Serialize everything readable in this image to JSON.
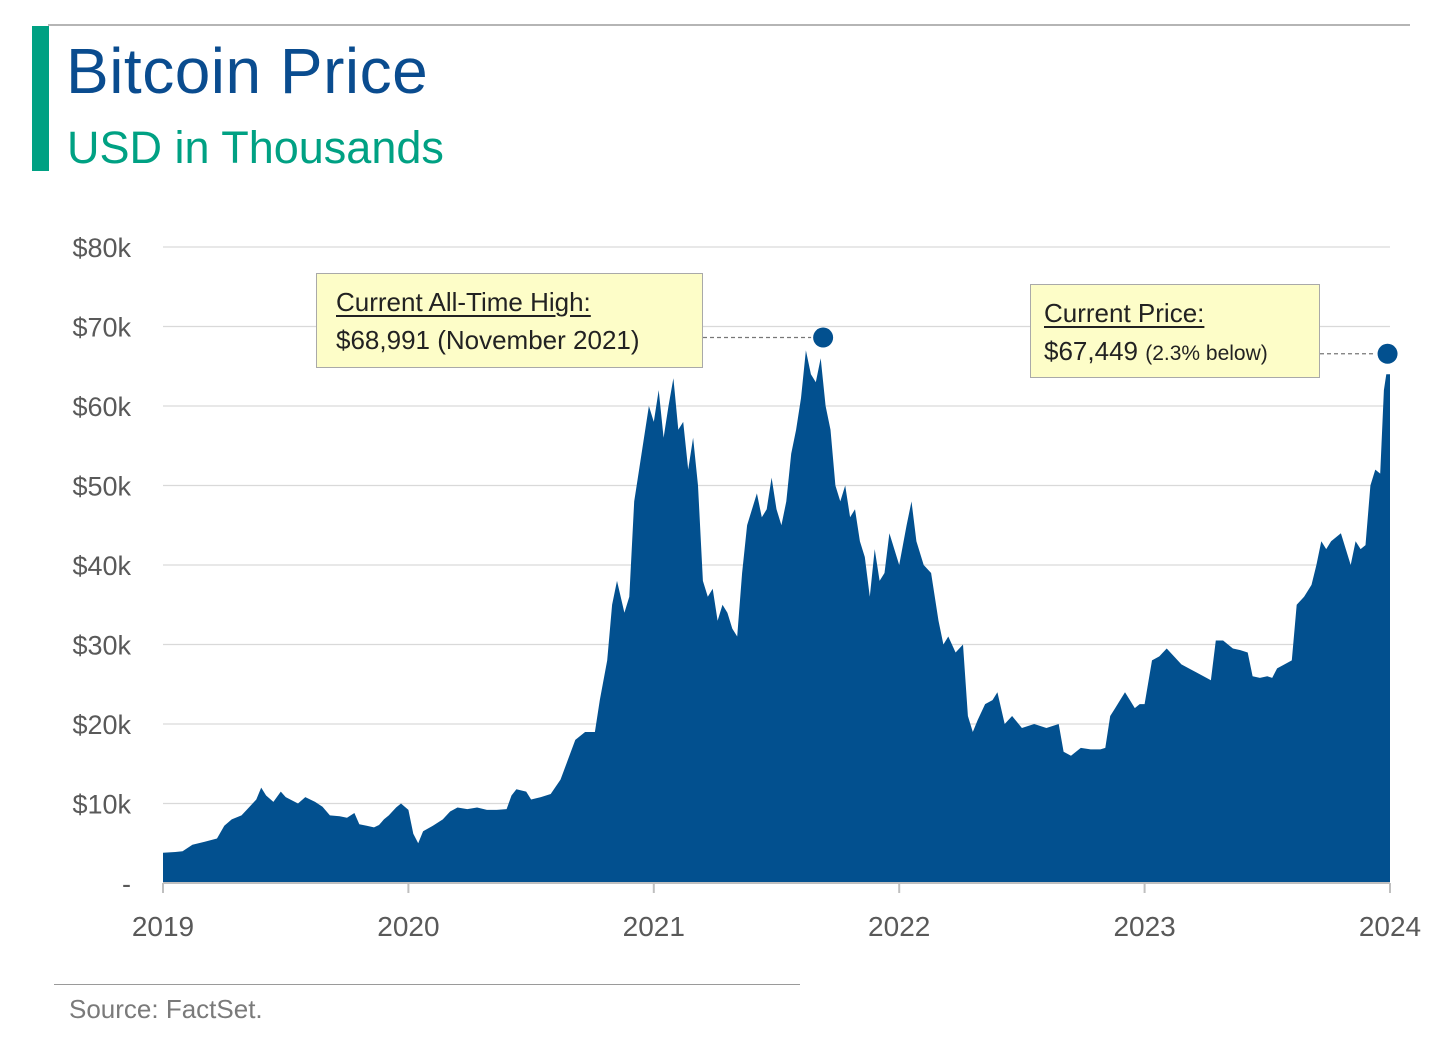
{
  "header": {
    "title": "Bitcoin Price",
    "subtitle": "USD in Thousands"
  },
  "footer": {
    "source": "Source: FactSet."
  },
  "annotations": {
    "all_time_high": {
      "label": "Current All-Time High:",
      "value": "$68,991 (November 2021)",
      "x": 2021.69,
      "y": 68.991
    },
    "current_price": {
      "label": "Current Price:",
      "value": "$67,449",
      "note": "(2.3% below)",
      "x": 2023.99,
      "y": 67.449
    }
  },
  "colors": {
    "area": "#02508f",
    "title": "#0a4c8f",
    "accent": "#00a183",
    "callout_bg": "#fdfdc8",
    "grid": "#d9d9d9"
  },
  "chart_data": {
    "type": "area",
    "title": "Bitcoin Price",
    "subtitle": "USD in Thousands",
    "x_ticks": [
      "2019",
      "2020",
      "2021",
      "2022",
      "2023",
      "2024"
    ],
    "x_tick_values": [
      2019,
      2020,
      2021,
      2022,
      2023,
      2024
    ],
    "y_ticks": [
      "-",
      "$10k",
      "$20k",
      "$30k",
      "$40k",
      "$50k",
      "$60k",
      "$70k",
      "$80k"
    ],
    "y_tick_values": [
      0,
      10,
      20,
      30,
      40,
      50,
      60,
      70,
      80
    ],
    "xlim": [
      2019,
      2024
    ],
    "ylim": [
      0,
      80
    ],
    "grid": true,
    "series": [
      {
        "points": [
          [
            2019.0,
            3.8
          ],
          [
            2019.05,
            3.9
          ],
          [
            2019.08,
            4.0
          ],
          [
            2019.12,
            4.8
          ],
          [
            2019.17,
            5.2
          ],
          [
            2019.22,
            5.6
          ],
          [
            2019.25,
            7.2
          ],
          [
            2019.28,
            8.0
          ],
          [
            2019.32,
            8.5
          ],
          [
            2019.35,
            9.5
          ],
          [
            2019.38,
            10.5
          ],
          [
            2019.4,
            12.0
          ],
          [
            2019.42,
            11.0
          ],
          [
            2019.45,
            10.2
          ],
          [
            2019.48,
            11.5
          ],
          [
            2019.5,
            10.8
          ],
          [
            2019.55,
            10.0
          ],
          [
            2019.58,
            10.8
          ],
          [
            2019.62,
            10.2
          ],
          [
            2019.65,
            9.6
          ],
          [
            2019.68,
            8.5
          ],
          [
            2019.72,
            8.4
          ],
          [
            2019.75,
            8.2
          ],
          [
            2019.78,
            8.8
          ],
          [
            2019.8,
            7.4
          ],
          [
            2019.83,
            7.2
          ],
          [
            2019.86,
            7.0
          ],
          [
            2019.88,
            7.3
          ],
          [
            2019.9,
            8.0
          ],
          [
            2019.92,
            8.5
          ],
          [
            2019.95,
            9.5
          ],
          [
            2019.97,
            10.0
          ],
          [
            2020.0,
            9.2
          ],
          [
            2020.02,
            6.2
          ],
          [
            2020.04,
            5.0
          ],
          [
            2020.06,
            6.5
          ],
          [
            2020.1,
            7.2
          ],
          [
            2020.14,
            8.0
          ],
          [
            2020.17,
            9.0
          ],
          [
            2020.2,
            9.5
          ],
          [
            2020.24,
            9.3
          ],
          [
            2020.28,
            9.5
          ],
          [
            2020.32,
            9.2
          ],
          [
            2020.36,
            9.2
          ],
          [
            2020.4,
            9.3
          ],
          [
            2020.42,
            11.0
          ],
          [
            2020.44,
            11.8
          ],
          [
            2020.48,
            11.5
          ],
          [
            2020.5,
            10.5
          ],
          [
            2020.54,
            10.8
          ],
          [
            2020.58,
            11.2
          ],
          [
            2020.62,
            13.0
          ],
          [
            2020.65,
            15.5
          ],
          [
            2020.68,
            18.0
          ],
          [
            2020.72,
            19.0
          ],
          [
            2020.76,
            19.0
          ],
          [
            2020.78,
            23.0
          ],
          [
            2020.81,
            28.0
          ],
          [
            2020.83,
            35.0
          ],
          [
            2020.85,
            38.0
          ],
          [
            2020.88,
            34.0
          ],
          [
            2020.9,
            36.0
          ],
          [
            2020.92,
            48.0
          ],
          [
            2020.94,
            52.0
          ],
          [
            2020.96,
            56.0
          ],
          [
            2020.98,
            60.0
          ],
          [
            2021.0,
            58.0
          ],
          [
            2021.02,
            62.0
          ],
          [
            2021.04,
            56.0
          ],
          [
            2021.06,
            60.0
          ],
          [
            2021.08,
            63.5
          ],
          [
            2021.1,
            57.0
          ],
          [
            2021.12,
            58.0
          ],
          [
            2021.14,
            52.0
          ],
          [
            2021.16,
            56.0
          ],
          [
            2021.18,
            50.0
          ],
          [
            2021.2,
            38.0
          ],
          [
            2021.22,
            36.0
          ],
          [
            2021.24,
            37.0
          ],
          [
            2021.26,
            33.0
          ],
          [
            2021.28,
            35.0
          ],
          [
            2021.3,
            34.0
          ],
          [
            2021.32,
            32.0
          ],
          [
            2021.34,
            31.0
          ],
          [
            2021.36,
            39.0
          ],
          [
            2021.38,
            45.0
          ],
          [
            2021.4,
            47.0
          ],
          [
            2021.42,
            49.0
          ],
          [
            2021.44,
            46.0
          ],
          [
            2021.46,
            47.0
          ],
          [
            2021.48,
            51.0
          ],
          [
            2021.5,
            47.0
          ],
          [
            2021.52,
            45.0
          ],
          [
            2021.54,
            48.0
          ],
          [
            2021.56,
            54.0
          ],
          [
            2021.58,
            57.0
          ],
          [
            2021.6,
            61.0
          ],
          [
            2021.62,
            67.0
          ],
          [
            2021.64,
            64.0
          ],
          [
            2021.66,
            63.0
          ],
          [
            2021.68,
            66.0
          ],
          [
            2021.7,
            60.0
          ],
          [
            2021.72,
            57.0
          ],
          [
            2021.74,
            50.0
          ],
          [
            2021.76,
            48.0
          ],
          [
            2021.78,
            50.0
          ],
          [
            2021.8,
            46.0
          ],
          [
            2021.82,
            47.0
          ],
          [
            2021.84,
            43.0
          ],
          [
            2021.86,
            41.0
          ],
          [
            2021.88,
            36.0
          ],
          [
            2021.9,
            42.0
          ],
          [
            2021.92,
            38.0
          ],
          [
            2021.94,
            39.0
          ],
          [
            2021.96,
            44.0
          ],
          [
            2021.98,
            42.0
          ],
          [
            2022.0,
            40.0
          ],
          [
            2022.03,
            45.0
          ],
          [
            2022.05,
            48.0
          ],
          [
            2022.07,
            43.0
          ],
          [
            2022.1,
            40.0
          ],
          [
            2022.13,
            39.0
          ],
          [
            2022.16,
            33.0
          ],
          [
            2022.18,
            30.0
          ],
          [
            2022.2,
            31.0
          ],
          [
            2022.23,
            29.0
          ],
          [
            2022.26,
            30.0
          ],
          [
            2022.28,
            21.0
          ],
          [
            2022.3,
            19.0
          ],
          [
            2022.32,
            20.5
          ],
          [
            2022.35,
            22.5
          ],
          [
            2022.38,
            23.0
          ],
          [
            2022.4,
            24.0
          ],
          [
            2022.43,
            20.0
          ],
          [
            2022.46,
            21.0
          ],
          [
            2022.5,
            19.5
          ],
          [
            2022.55,
            20.0
          ],
          [
            2022.6,
            19.5
          ],
          [
            2022.65,
            20.0
          ],
          [
            2022.67,
            16.5
          ],
          [
            2022.7,
            16.0
          ],
          [
            2022.74,
            17.0
          ],
          [
            2022.78,
            16.8
          ],
          [
            2022.82,
            16.8
          ],
          [
            2022.84,
            17.0
          ],
          [
            2022.86,
            21.0
          ],
          [
            2022.88,
            22.0
          ],
          [
            2022.9,
            23.0
          ],
          [
            2022.92,
            24.0
          ],
          [
            2022.94,
            23.0
          ],
          [
            2022.96,
            22.0
          ],
          [
            2022.98,
            22.5
          ],
          [
            2023.0,
            22.5
          ],
          [
            2023.03,
            28.0
          ],
          [
            2023.06,
            28.5
          ],
          [
            2023.09,
            29.5
          ],
          [
            2023.12,
            28.5
          ],
          [
            2023.15,
            27.5
          ],
          [
            2023.18,
            27.0
          ],
          [
            2023.21,
            26.5
          ],
          [
            2023.24,
            26.0
          ],
          [
            2023.27,
            25.5
          ],
          [
            2023.29,
            30.5
          ],
          [
            2023.32,
            30.5
          ],
          [
            2023.36,
            29.5
          ],
          [
            2023.39,
            29.3
          ],
          [
            2023.42,
            29.0
          ],
          [
            2023.44,
            26.0
          ],
          [
            2023.47,
            25.8
          ],
          [
            2023.5,
            26.0
          ],
          [
            2023.52,
            25.8
          ],
          [
            2023.54,
            27.0
          ],
          [
            2023.57,
            27.5
          ],
          [
            2023.6,
            28.0
          ],
          [
            2023.62,
            35.0
          ],
          [
            2023.65,
            36.0
          ],
          [
            2023.68,
            37.5
          ],
          [
            2023.7,
            40.0
          ],
          [
            2023.72,
            43.0
          ],
          [
            2023.74,
            42.0
          ],
          [
            2023.76,
            43.0
          ],
          [
            2023.78,
            43.5
          ],
          [
            2023.8,
            44.0
          ],
          [
            2023.82,
            42.0
          ],
          [
            2023.84,
            40.0
          ],
          [
            2023.86,
            43.0
          ],
          [
            2023.88,
            42.0
          ],
          [
            2023.9,
            42.5
          ],
          [
            2023.92,
            50.0
          ],
          [
            2023.94,
            52.0
          ],
          [
            2023.96,
            51.5
          ],
          [
            2023.975,
            62.0
          ],
          [
            2023.985,
            64.0
          ],
          [
            2024.0,
            64.0
          ]
        ]
      }
    ]
  }
}
